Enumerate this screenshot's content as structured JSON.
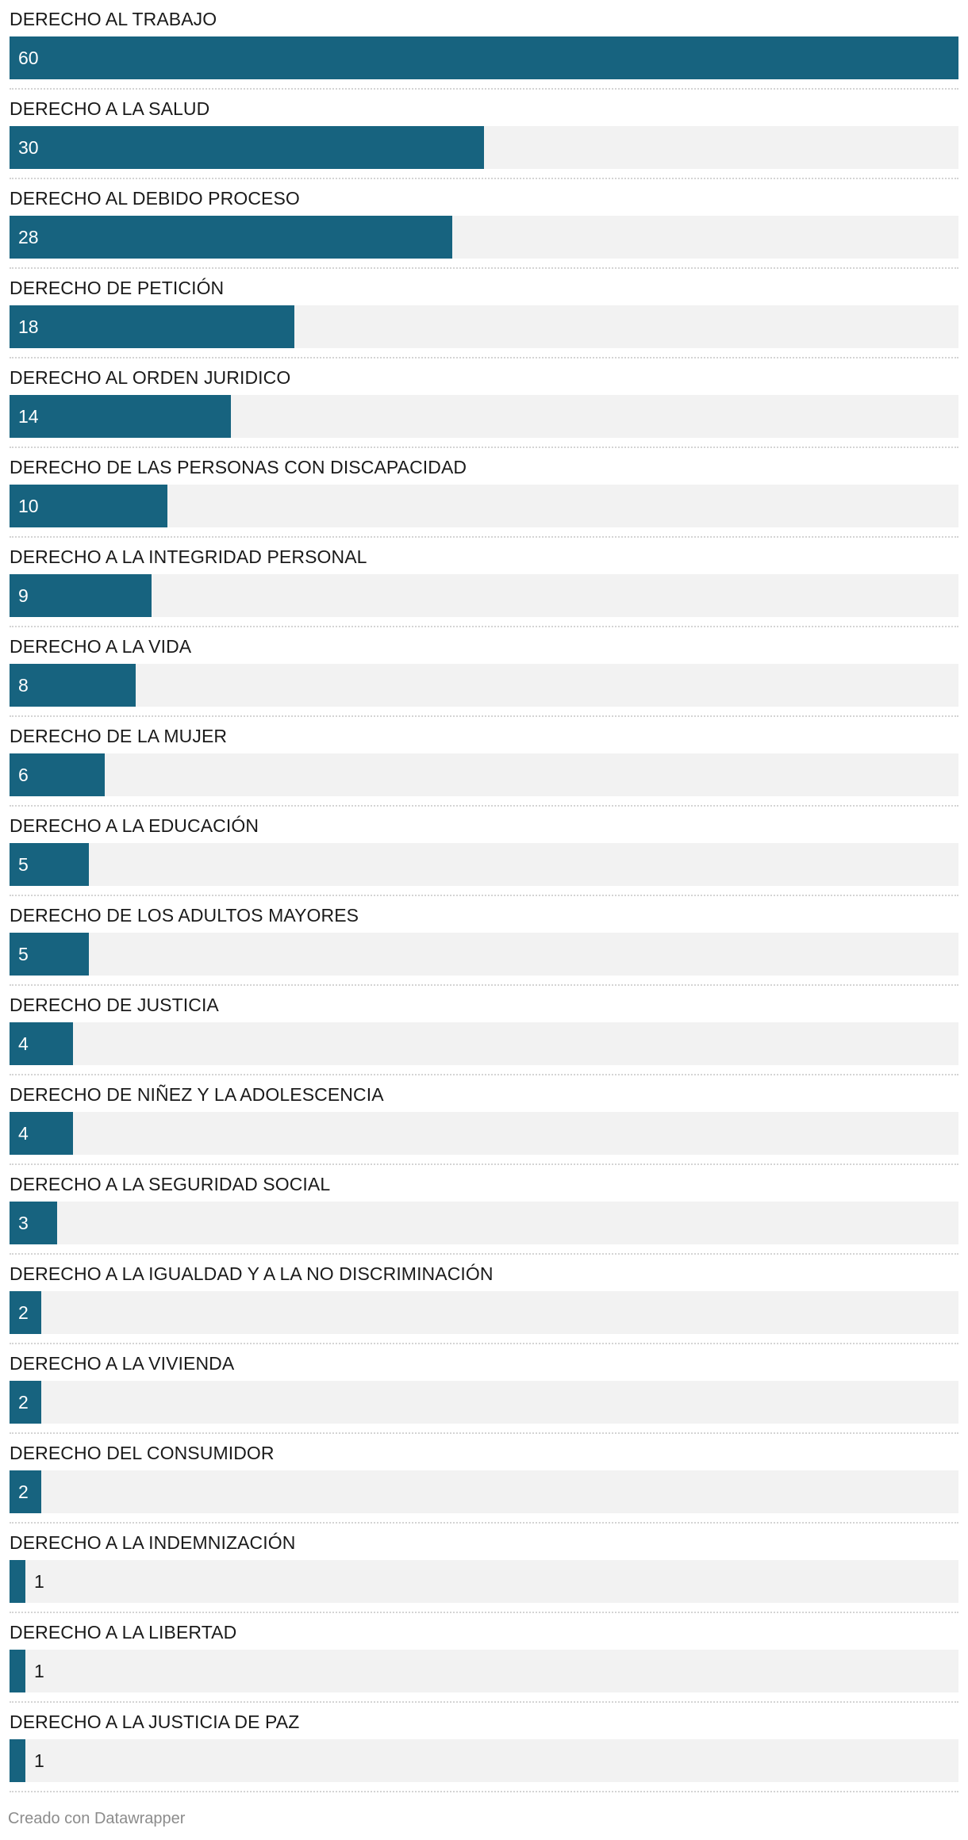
{
  "chart_data": {
    "type": "bar",
    "orientation": "horizontal",
    "bar_color": "#17637f",
    "track_color": "#f2f2f2",
    "xlim": [
      0,
      60
    ],
    "categories": [
      "DERECHO AL TRABAJO",
      "DERECHO A LA SALUD",
      "DERECHO AL DEBIDO PROCESO",
      "DERECHO DE PETICIÓN",
      "DERECHO AL ORDEN JURIDICO",
      "DERECHO DE LAS PERSONAS CON DISCAPACIDAD",
      "DERECHO A LA INTEGRIDAD PERSONAL",
      "DERECHO A LA VIDA",
      "DERECHO DE LA MUJER",
      "DERECHO A LA EDUCACIÓN",
      "DERECHO DE LOS ADULTOS MAYORES",
      "DERECHO DE JUSTICIA",
      "DERECHO DE NIÑEZ Y LA ADOLESCENCIA",
      "DERECHO A LA SEGURIDAD SOCIAL",
      "DERECHO A LA IGUALDAD Y A LA NO DISCRIMINACIÓN",
      "DERECHO A LA VIVIENDA",
      "DERECHO DEL CONSUMIDOR",
      "DERECHO A LA INDEMNIZACIÓN",
      "DERECHO A LA LIBERTAD",
      "DERECHO A LA JUSTICIA DE PAZ"
    ],
    "values": [
      60,
      30,
      28,
      18,
      14,
      10,
      9,
      8,
      6,
      5,
      5,
      4,
      4,
      3,
      2,
      2,
      2,
      1,
      1,
      1
    ]
  },
  "footer": {
    "credit": "Creado con Datawrapper"
  }
}
